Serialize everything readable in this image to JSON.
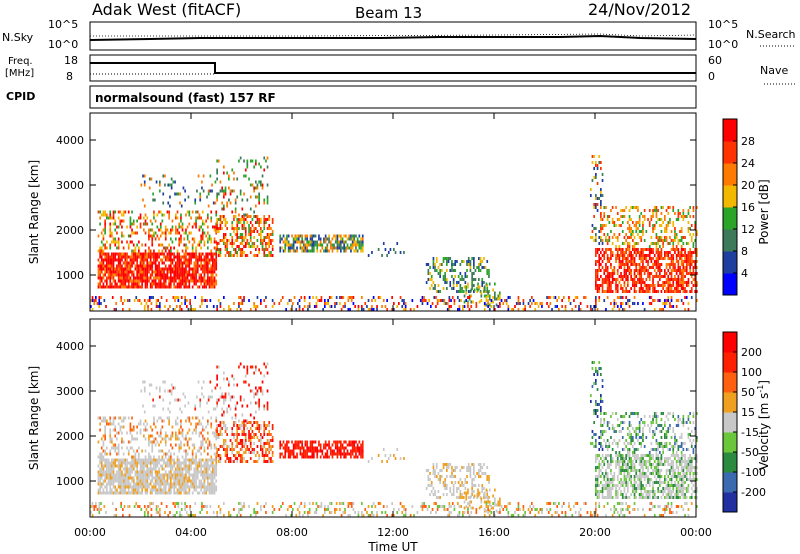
{
  "header": {
    "station": "Adak West (fitACF)",
    "beam": "Beam 13",
    "date": "24/Nov/2012"
  },
  "summary_panels": {
    "nsky_label": "N.Sky",
    "nsearch_label": "N.Search",
    "left_ticks": [
      "10^5",
      "10^0"
    ],
    "right_ticks": [
      "10^5",
      "10^0"
    ],
    "freq_label": [
      "Freq.",
      "[MHz]"
    ],
    "freq_ticks": [
      "18",
      "8"
    ],
    "nave_label": "Nave",
    "nave_ticks": [
      "60",
      "0"
    ],
    "cpid_label": "CPID",
    "cpid_value": "normalsound (fast) 157 RF"
  },
  "colors": {
    "power": [
      "#0000ff",
      "#1e3fa0",
      "#3c7a5a",
      "#2aa52a",
      "#f2b800",
      "#ff7a00",
      "#ff3300",
      "#ff0000"
    ],
    "velocity": [
      "#2030a0",
      "#3a6ab0",
      "#2a8a40",
      "#6ac63a",
      "#c8c8c8",
      "#f0a020",
      "#ff6010",
      "#ff2000",
      "#ff0000"
    ]
  },
  "chart_data": [
    {
      "type": "heatmap",
      "name": "power",
      "xlabel": "",
      "ylabel": "Slant Range [km]",
      "y_ticks": [
        "1000",
        "2000",
        "3000",
        "4000"
      ],
      "ylim": [
        200,
        4600
      ],
      "colorbar_label": "Power [dB]",
      "colorbar_ticks": [
        "4",
        "8",
        "12",
        "16",
        "20",
        "24",
        "28"
      ]
    },
    {
      "type": "heatmap",
      "name": "velocity",
      "xlabel": "Time UT",
      "ylabel": "Slant Range [km]",
      "y_ticks": [
        "1000",
        "2000",
        "3000",
        "4000"
      ],
      "ylim": [
        200,
        4600
      ],
      "x_ticks": [
        "00:00",
        "04:00",
        "08:00",
        "12:00",
        "16:00",
        "20:00",
        "00:00"
      ],
      "xlim": [
        "00:00",
        "24:00"
      ],
      "colorbar_label": "Velocity [m s^-1]",
      "colorbar_ticks": [
        "200",
        "100",
        "50",
        "15",
        "-15",
        "-50",
        "-100",
        "-200"
      ]
    }
  ]
}
